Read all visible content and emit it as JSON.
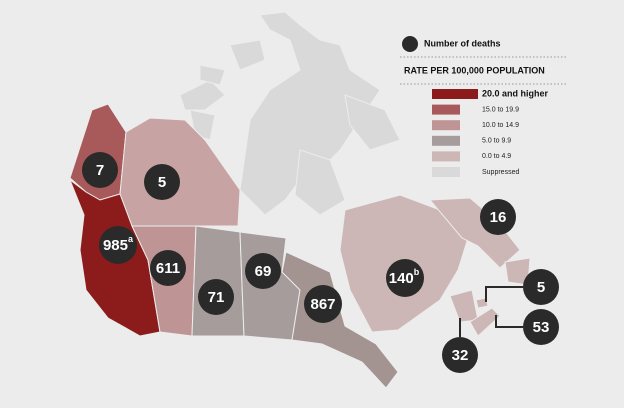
{
  "legend": {
    "deaths_label": "Number of deaths",
    "rate_title": "RATE PER 100,000 POPULATION",
    "categories": [
      {
        "label": "20.0 and higher",
        "color": "#8c1c1c"
      },
      {
        "label": "15.0 to 19.9",
        "color": "#a85959"
      },
      {
        "label": "10.0 to 14.9",
        "color": "#bf9494"
      },
      {
        "label": "5.0 to 9.9",
        "color": "#a69c9c"
      },
      {
        "label": "0.0 to 4.9",
        "color": "#cdb6b6"
      },
      {
        "label": "Suppressed",
        "color": "#d9d9d9"
      }
    ]
  },
  "regions": [
    {
      "deaths": 7
    },
    {
      "deaths": 5
    },
    {
      "deaths": 985,
      "note": "a"
    },
    {
      "deaths": 611
    },
    {
      "deaths": 71
    },
    {
      "deaths": 69
    },
    {
      "deaths": 867
    },
    {
      "deaths": 140,
      "note": "b"
    },
    {
      "deaths": 16
    },
    {
      "deaths": 5
    },
    {
      "deaths": 53
    },
    {
      "deaths": 32
    }
  ]
}
